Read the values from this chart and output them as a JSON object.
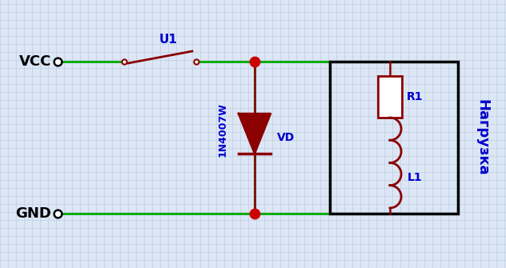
{
  "bg_color": "#dce6f5",
  "grid_color": "#b8c8e0",
  "wire_color": "#00aa00",
  "component_color": "#8b0000",
  "label_color": "#0000cc",
  "black_color": "#000000",
  "dot_color": "#cc0000",
  "vcc_label": "VCC",
  "gnd_label": "GND",
  "u1_label": "U1",
  "vd_label": "VD",
  "diode_label": "1N4007W",
  "r1_label": "R1",
  "l1_label": "L1",
  "load_label": "Нагрузка",
  "fig_width": 6.32,
  "fig_height": 3.35,
  "dpi": 100
}
